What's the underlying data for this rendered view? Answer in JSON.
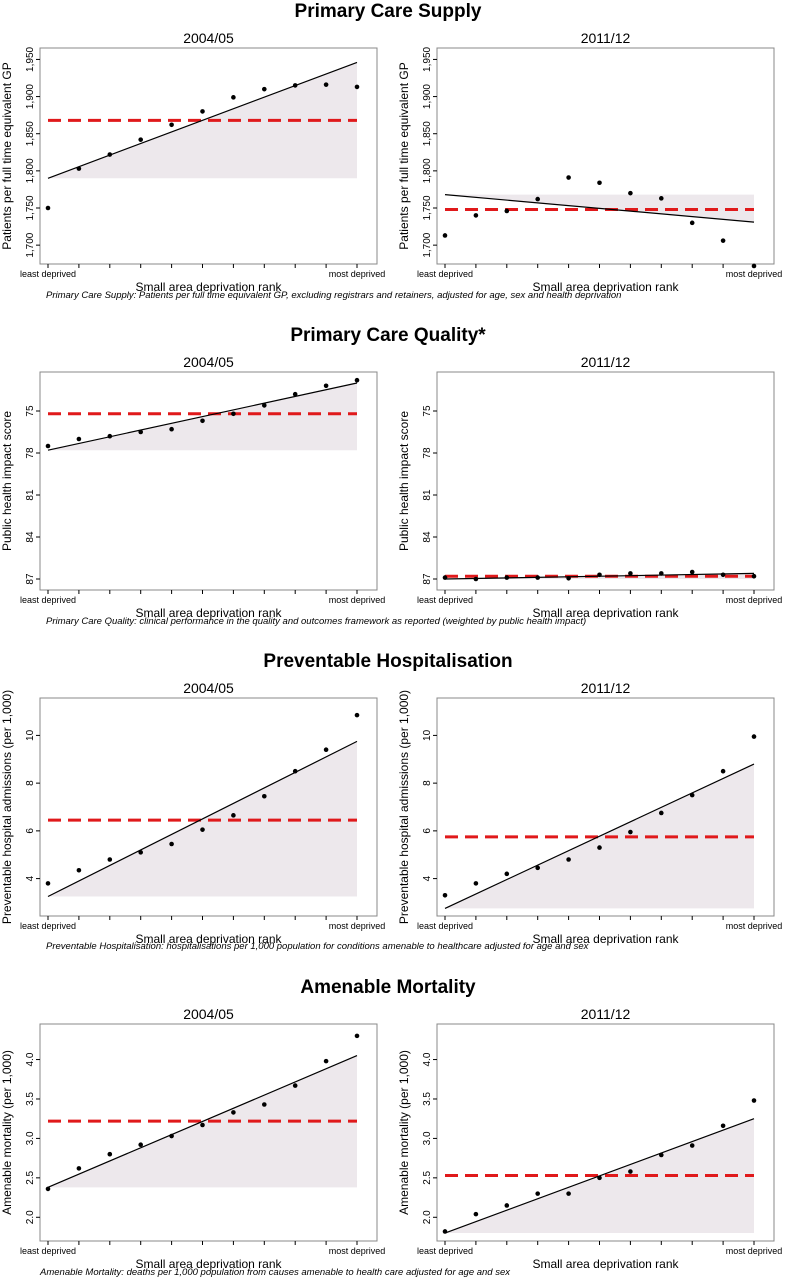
{
  "sections": [
    {
      "title": "Primary Care Supply",
      "caption": "Primary Care Supply: Patients per full time equivalent GP, excluding registrars and retainers, adjusted for age, sex and health deprivation"
    },
    {
      "title": "Primary Care Quality*",
      "caption": "Primary Care Quality: clinical performance in the quality and outcomes framework as reported (weighted by public health impact)"
    },
    {
      "title": "Preventable Hospitalisation",
      "caption": "Preventable Hospitalisation: hospitalisations per 1,000 population for conditions amenable to healthcare adjusted for age and sex"
    },
    {
      "title": "Amenable Mortality",
      "caption": "Amenable Mortality: deaths per 1,000 population from causes amenable to health care adjusted for age and sex"
    }
  ],
  "colors": {
    "points": "#000000",
    "fit_line": "#000000",
    "mean_line": "#e0191b",
    "gap_fill": "#ede8ec",
    "frame": "#888888"
  },
  "chart_data": [
    {
      "type": "scatter",
      "section": 0,
      "title": "2004/05",
      "xlabel": "Small area deprivation rank",
      "ylabel": "Patients per full time equivalent GP",
      "x_tick_labels": [
        "least deprived",
        "most deprived"
      ],
      "x": [
        1,
        2,
        3,
        4,
        5,
        6,
        7,
        8,
        9,
        10,
        11
      ],
      "values": [
        1750,
        1803,
        1822,
        1842,
        1862,
        1880,
        1899,
        1910,
        1915,
        1916,
        1913
      ],
      "fit_line": [
        1790,
        1946
      ],
      "mean": 1868,
      "ylim": [
        1680,
        1960
      ],
      "yticks": [
        1700,
        1750,
        1800,
        1850,
        1900,
        1950
      ],
      "ytick_labels": [
        "1,700",
        "1,750",
        "1,800",
        "1,850",
        "1,900",
        "1,950"
      ],
      "y_inverted": false
    },
    {
      "type": "scatter",
      "section": 0,
      "title": "2011/12",
      "xlabel": "Small area deprivation rank",
      "ylabel": "Patients per full time equivalent GP",
      "x_tick_labels": [
        "least deprived",
        "most deprived"
      ],
      "x": [
        1,
        2,
        3,
        4,
        5,
        6,
        7,
        8,
        9,
        10,
        11
      ],
      "values": [
        1713,
        1740,
        1746,
        1762,
        1791,
        1784,
        1770,
        1763,
        1730,
        1706,
        1672
      ],
      "fit_line": [
        1768,
        1731
      ],
      "mean": 1748,
      "ylim": [
        1680,
        1960
      ],
      "yticks": [
        1700,
        1750,
        1800,
        1850,
        1900,
        1950
      ],
      "ytick_labels": [
        "1,700",
        "1,750",
        "1,800",
        "1,850",
        "1,900",
        "1,950"
      ],
      "y_inverted": false
    },
    {
      "type": "scatter",
      "section": 1,
      "title": "2004/05",
      "xlabel": "Small area deprivation rank",
      "ylabel": "Public health impact score",
      "x_tick_labels": [
        "least deprived",
        "most deprived"
      ],
      "x": [
        1,
        2,
        3,
        4,
        5,
        6,
        7,
        8,
        9,
        10,
        11
      ],
      "values": [
        77.5,
        77.0,
        76.8,
        76.5,
        76.3,
        75.7,
        75.2,
        74.6,
        73.8,
        73.2,
        72.8
      ],
      "fit_line": [
        77.8,
        73.0
      ],
      "mean": 75.2,
      "ylim": [
        87.5,
        72.5
      ],
      "yticks": [
        75,
        78,
        81,
        84,
        87
      ],
      "ytick_labels": [
        "75",
        "78",
        "81",
        "84",
        "87"
      ],
      "y_inverted": true
    },
    {
      "type": "scatter",
      "section": 1,
      "title": "2011/12",
      "xlabel": "Small area deprivation rank",
      "ylabel": "Public health impact score",
      "x_tick_labels": [
        "least deprived",
        "most deprived"
      ],
      "x": [
        1,
        2,
        3,
        4,
        5,
        6,
        7,
        8,
        9,
        10,
        11
      ],
      "values": [
        86.9,
        87.0,
        86.9,
        86.9,
        86.95,
        86.7,
        86.6,
        86.6,
        86.5,
        86.7,
        86.8
      ],
      "fit_line": [
        87.0,
        86.6
      ],
      "mean": 86.8,
      "ylim": [
        87.5,
        72.5
      ],
      "yticks": [
        75,
        78,
        81,
        84,
        87
      ],
      "ytick_labels": [
        "75",
        "78",
        "81",
        "84",
        "87"
      ],
      "y_inverted": true
    },
    {
      "type": "scatter",
      "section": 2,
      "title": "2004/05",
      "xlabel": "Small area deprivation rank",
      "ylabel": "Preventable hospital admissions (per 1,000)",
      "x_tick_labels": [
        "least deprived",
        "most deprived"
      ],
      "x": [
        1,
        2,
        3,
        4,
        5,
        6,
        7,
        8,
        9,
        10,
        11
      ],
      "values": [
        3.8,
        4.35,
        4.8,
        5.1,
        5.45,
        6.05,
        6.65,
        7.45,
        8.5,
        9.4,
        10.85
      ],
      "fit_line": [
        3.25,
        9.75
      ],
      "mean": 6.45,
      "ylim": [
        2.6,
        11.4
      ],
      "yticks": [
        4,
        6,
        8,
        10
      ],
      "ytick_labels": [
        "4",
        "6",
        "8",
        "10"
      ],
      "y_inverted": false
    },
    {
      "type": "scatter",
      "section": 2,
      "title": "2011/12",
      "xlabel": "Small area deprivation rank",
      "ylabel": "Preventable hospital admissions (per 1,000)",
      "x_tick_labels": [
        "least deprived",
        "most deprived"
      ],
      "x": [
        1,
        2,
        3,
        4,
        5,
        6,
        7,
        8,
        9,
        10,
        11
      ],
      "values": [
        3.3,
        3.8,
        4.2,
        4.45,
        4.8,
        5.3,
        5.95,
        6.75,
        7.5,
        8.5,
        9.95
      ],
      "fit_line": [
        2.75,
        8.8
      ],
      "mean": 5.75,
      "ylim": [
        2.6,
        11.4
      ],
      "yticks": [
        4,
        6,
        8,
        10
      ],
      "ytick_labels": [
        "4",
        "6",
        "8",
        "10"
      ],
      "y_inverted": false
    },
    {
      "type": "scatter",
      "section": 3,
      "title": "2004/05",
      "xlabel": "Small area deprivation rank",
      "ylabel": "Amenable mortality (per 1,000)",
      "x_tick_labels": [
        "least deprived",
        "most deprived"
      ],
      "x": [
        1,
        2,
        3,
        4,
        5,
        6,
        7,
        8,
        9,
        10,
        11
      ],
      "values": [
        2.36,
        2.62,
        2.8,
        2.92,
        3.03,
        3.17,
        3.33,
        3.43,
        3.67,
        3.98,
        4.3
      ],
      "fit_line": [
        2.38,
        4.05
      ],
      "mean": 3.22,
      "ylim": [
        1.75,
        4.4
      ],
      "yticks": [
        2.0,
        2.5,
        3.0,
        3.5,
        4.0
      ],
      "ytick_labels": [
        "2.0",
        "2.5",
        "3.0",
        "3.5",
        "4.0"
      ],
      "y_inverted": false
    },
    {
      "type": "scatter",
      "section": 3,
      "title": "2011/12",
      "xlabel": "Small area deprivation rank",
      "ylabel": "Amenable mortality (per 1,000)",
      "x_tick_labels": [
        "least deprived",
        "most deprived"
      ],
      "x": [
        1,
        2,
        3,
        4,
        5,
        6,
        7,
        8,
        9,
        10,
        11
      ],
      "values": [
        1.82,
        2.04,
        2.15,
        2.3,
        2.3,
        2.5,
        2.58,
        2.79,
        2.91,
        3.16,
        3.48
      ],
      "fit_line": [
        1.8,
        3.25
      ],
      "mean": 2.53,
      "ylim": [
        1.75,
        4.4
      ],
      "yticks": [
        2.0,
        2.5,
        3.0,
        3.5,
        4.0
      ],
      "ytick_labels": [
        "2.0",
        "2.5",
        "3.0",
        "3.5",
        "4.0"
      ],
      "y_inverted": false
    }
  ]
}
